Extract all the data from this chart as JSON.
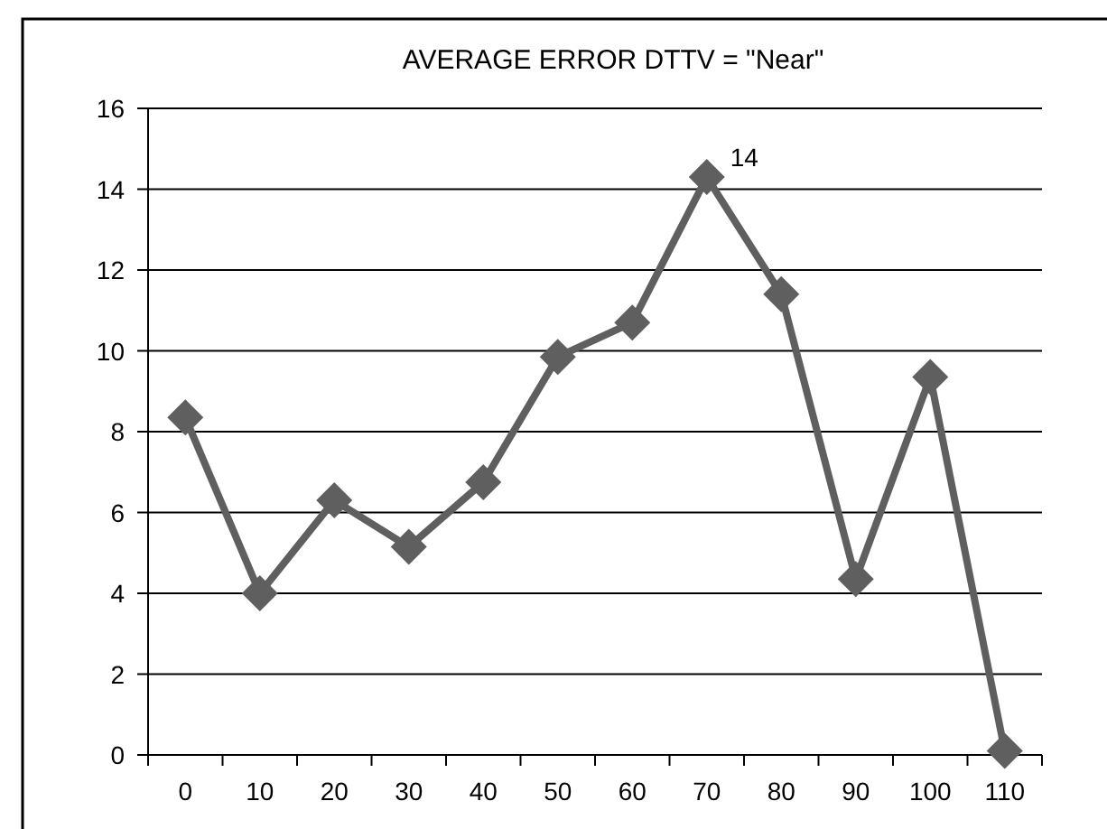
{
  "chart_data": {
    "type": "line",
    "title": "AVERAGE ERROR DTTV = \"Near\"",
    "categories": [
      "0",
      "10",
      "20",
      "30",
      "40",
      "50",
      "60",
      "70",
      "80",
      "90",
      "100",
      "110"
    ],
    "series": [
      {
        "color": "#5f5f5f",
        "values": [
          8.35,
          4.0,
          6.3,
          5.15,
          6.75,
          9.85,
          10.7,
          14.3,
          11.4,
          4.35,
          9.35,
          0.1
        ],
        "value_labels": [
          null,
          null,
          null,
          null,
          null,
          null,
          null,
          "14",
          null,
          null,
          null,
          null
        ]
      }
    ],
    "ylim": [
      0,
      16
    ],
    "yticks": [
      0,
      2,
      4,
      6,
      8,
      10,
      12,
      14,
      16
    ],
    "grid": "y",
    "marker": "diamond",
    "line_style": "solid"
  }
}
